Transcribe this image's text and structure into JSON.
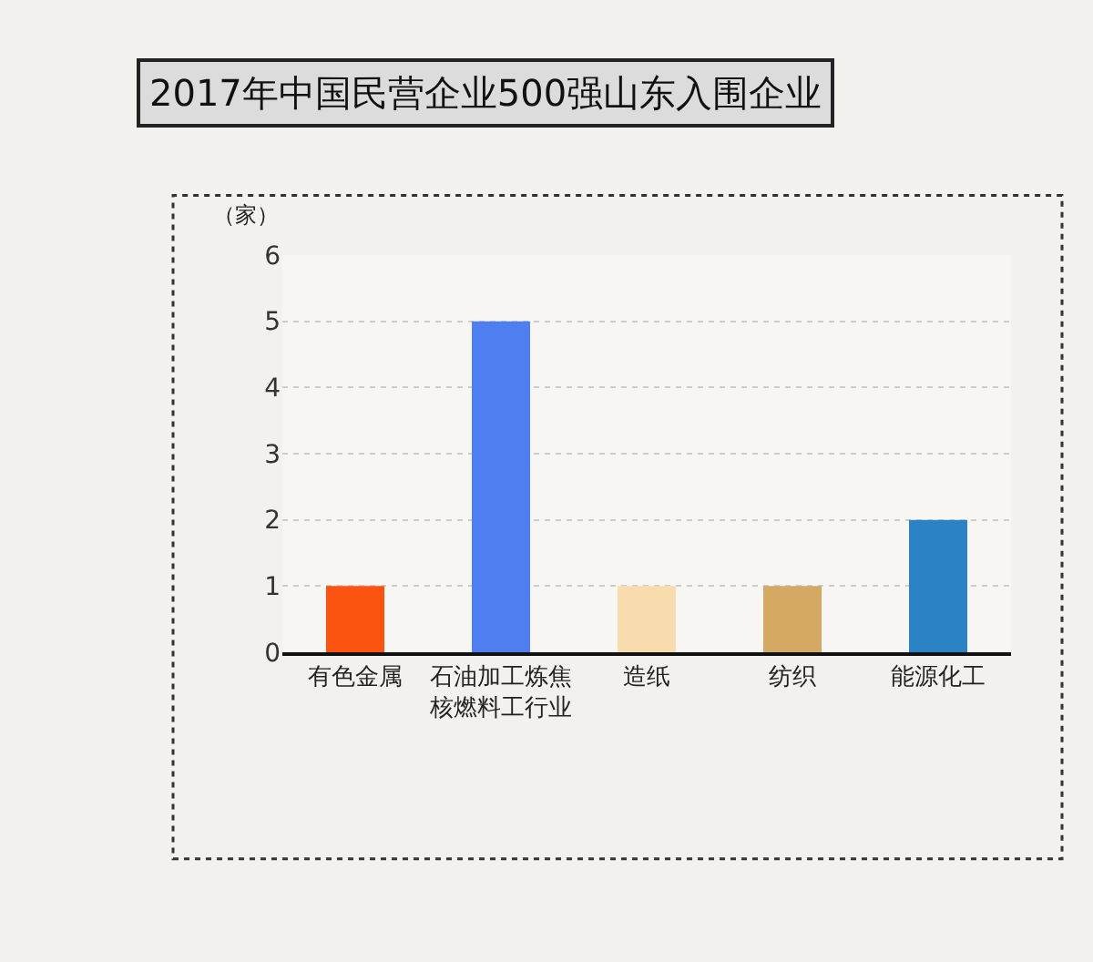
{
  "chart_data": {
    "type": "bar",
    "title": "2017年中国民营企业500强山东入围企业",
    "ylabel": "（家）",
    "categories": [
      "有色金属",
      "石油加工炼焦核燃料工行业",
      "造纸",
      "纺织",
      "能源化工"
    ],
    "values": [
      1,
      5,
      1,
      1,
      2
    ],
    "colors": [
      "#fb5411",
      "#4f7ef0",
      "#f8dcae",
      "#d4a963",
      "#2a83c4"
    ],
    "ylim": [
      0,
      6
    ],
    "yticks": [
      0,
      1,
      2,
      3,
      4,
      5,
      6
    ],
    "grid": "y"
  }
}
